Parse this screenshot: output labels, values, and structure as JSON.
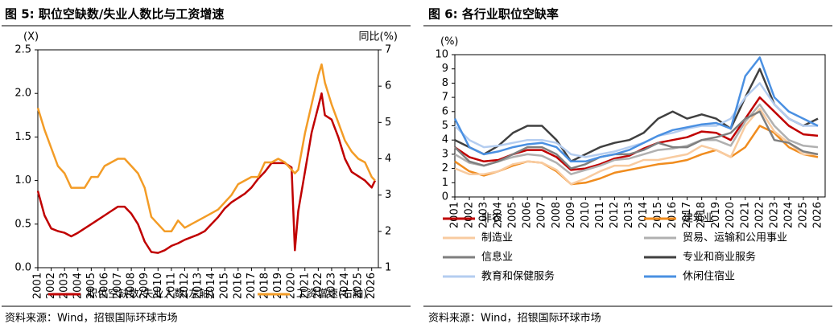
{
  "chart_data": [
    {
      "type": "line",
      "title": "图 5: 职位空缺数/失业人数比与工资增速",
      "y_label": "(X)",
      "y2_label": "同比(%)",
      "x": [
        2001,
        2001.5,
        2002,
        2002.5,
        2003,
        2003.5,
        2004,
        2004.5,
        2005,
        2005.5,
        2006,
        2006.5,
        2007,
        2007.5,
        2008,
        2008.5,
        2009,
        2009.5,
        2010,
        2010.5,
        2011,
        2011.5,
        2012,
        2012.5,
        2013,
        2013.5,
        2014,
        2014.5,
        2015,
        2015.5,
        2016,
        2016.5,
        2017,
        2017.5,
        2018,
        2018.5,
        2019,
        2019.5,
        2020,
        2020.25,
        2020.5,
        2021,
        2021.5,
        2022,
        2022.25,
        2022.5,
        2023,
        2023.5,
        2024,
        2024.5,
        2025,
        2025.5,
        2026,
        2026.25
      ],
      "xlim": [
        2001,
        2026.5
      ],
      "xticks": [
        2001,
        2002,
        2003,
        2004,
        2005,
        2006,
        2007,
        2008,
        2009,
        2010,
        2011,
        2012,
        2013,
        2014,
        2015,
        2016,
        2017,
        2018,
        2019,
        2020,
        2021,
        2022,
        2023,
        2024,
        2025,
        2026
      ],
      "ylim": [
        0,
        2.5
      ],
      "yticks": [
        {
          "value": 0,
          "label": "0.0"
        },
        0.5,
        {
          "value": 1,
          "label": "1.0"
        },
        1.5,
        {
          "value": 2,
          "label": "2.0"
        },
        2.5
      ],
      "y2lim": [
        1,
        7
      ],
      "y2ticks": [
        1,
        2,
        3,
        4,
        5,
        6,
        7
      ],
      "series": [
        {
          "name": "职位空缺数/失业人数(左轴)",
          "color": "#c00000",
          "values": [
            0.88,
            0.6,
            0.45,
            0.42,
            0.4,
            0.36,
            0.4,
            0.45,
            0.5,
            0.55,
            0.6,
            0.65,
            0.7,
            0.7,
            0.62,
            0.5,
            0.3,
            0.18,
            0.17,
            0.2,
            0.25,
            0.28,
            0.32,
            0.35,
            0.38,
            0.42,
            0.5,
            0.58,
            0.68,
            0.75,
            0.8,
            0.85,
            0.92,
            1.02,
            1.1,
            1.2,
            1.2,
            1.2,
            1.15,
            0.2,
            0.65,
            1.1,
            1.55,
            1.85,
            2.0,
            1.75,
            1.7,
            1.5,
            1.25,
            1.1,
            1.05,
            1.0,
            0.92,
            1.0
          ]
        },
        {
          "name": "工资增速(右轴)",
          "color": "#f39c26",
          "axis": "y2",
          "values": [
            5.4,
            4.8,
            4.3,
            3.8,
            3.6,
            3.2,
            3.2,
            3.2,
            3.5,
            3.5,
            3.8,
            3.9,
            4.0,
            4.0,
            3.8,
            3.6,
            3.2,
            2.4,
            2.2,
            2.0,
            2.0,
            2.3,
            2.1,
            2.2,
            2.3,
            2.4,
            2.5,
            2.6,
            2.8,
            3.0,
            3.3,
            3.4,
            3.5,
            3.5,
            3.9,
            3.9,
            4.0,
            3.9,
            3.7,
            3.6,
            3.7,
            4.7,
            5.5,
            6.3,
            6.6,
            6.1,
            5.5,
            5.0,
            4.5,
            4.2,
            4.0,
            3.9,
            3.5,
            3.4
          ]
        }
      ],
      "source": "资料来源：Wind，招银国际环球市场"
    },
    {
      "type": "line",
      "title": "图 6: 各行业职位空缺率",
      "y_label": "(%)",
      "x": [
        2001,
        2002,
        2003,
        2004,
        2005,
        2006,
        2007,
        2008,
        2009,
        2010,
        2011,
        2012,
        2013,
        2014,
        2015,
        2016,
        2017,
        2018,
        2019,
        2020,
        2021,
        2022,
        2023,
        2024,
        2025,
        2026
      ],
      "xlim": [
        2001,
        2026.5
      ],
      "xticks": [
        2001,
        2002,
        2003,
        2004,
        2005,
        2006,
        2007,
        2008,
        2009,
        2010,
        2011,
        2012,
        2013,
        2014,
        2015,
        2016,
        2017,
        2018,
        2019,
        2020,
        2021,
        2022,
        2023,
        2024,
        2025,
        2026
      ],
      "ylim": [
        0,
        10
      ],
      "yticks": [
        0,
        1,
        2,
        3,
        4,
        5,
        6,
        7,
        8,
        9,
        10
      ],
      "series": [
        {
          "name": "非农",
          "color": "#c00000",
          "values": [
            3.5,
            2.8,
            2.5,
            2.6,
            3.0,
            3.3,
            3.3,
            2.8,
            1.9,
            2.0,
            2.3,
            2.7,
            2.9,
            3.4,
            3.8,
            4.0,
            4.2,
            4.6,
            4.5,
            4.0,
            5.5,
            7.0,
            6.0,
            5.0,
            4.4,
            4.3
          ]
        },
        {
          "name": "建筑业",
          "color": "#f08c1e",
          "values": [
            2.5,
            1.8,
            1.5,
            1.8,
            2.2,
            2.5,
            2.4,
            1.8,
            0.9,
            1.0,
            1.3,
            1.7,
            1.9,
            2.1,
            2.3,
            2.4,
            2.6,
            3.0,
            3.3,
            2.8,
            3.5,
            5.0,
            4.5,
            3.5,
            3.0,
            2.8
          ]
        },
        {
          "name": "制造业",
          "color": "#f8cba0",
          "values": [
            2.0,
            1.6,
            1.6,
            1.8,
            2.3,
            2.5,
            2.4,
            1.9,
            0.9,
            1.3,
            1.8,
            2.2,
            2.2,
            2.6,
            2.6,
            2.8,
            3.0,
            3.6,
            3.3,
            2.8,
            5.0,
            6.2,
            4.6,
            3.8,
            3.0,
            3.0
          ]
        },
        {
          "name": "贸易、运输和公用事业",
          "color": "#b0b0b0",
          "values": [
            3.0,
            2.4,
            2.2,
            2.5,
            2.8,
            3.0,
            2.9,
            2.4,
            1.6,
            1.9,
            2.2,
            2.6,
            2.7,
            3.0,
            3.3,
            3.4,
            3.6,
            4.0,
            4.0,
            3.6,
            5.3,
            6.5,
            5.0,
            4.0,
            3.6,
            3.5
          ]
        },
        {
          "name": "信息业",
          "color": "#7f7f7f",
          "values": [
            3.5,
            2.5,
            2.2,
            2.5,
            3.0,
            3.5,
            3.5,
            3.0,
            2.0,
            2.3,
            2.8,
            3.0,
            3.0,
            3.3,
            3.8,
            3.5,
            3.5,
            4.0,
            4.2,
            4.5,
            5.5,
            6.0,
            4.0,
            3.8,
            3.2,
            3.0
          ]
        },
        {
          "name": "专业和商业服务",
          "color": "#404040",
          "values": [
            4.0,
            3.5,
            3.0,
            3.6,
            4.5,
            5.0,
            5.0,
            4.0,
            2.5,
            3.0,
            3.5,
            3.8,
            4.0,
            4.5,
            5.5,
            6.0,
            5.5,
            5.8,
            5.5,
            4.8,
            7.0,
            9.0,
            6.5,
            5.5,
            5.0,
            5.5
          ]
        },
        {
          "name": "教育和保健服务",
          "color": "#b4cdf0",
          "values": [
            5.0,
            4.0,
            3.5,
            3.6,
            3.8,
            4.0,
            4.0,
            3.8,
            3.0,
            2.8,
            3.0,
            3.2,
            3.5,
            3.8,
            4.3,
            4.5,
            4.8,
            5.0,
            5.0,
            5.5,
            7.0,
            8.0,
            6.5,
            5.5,
            5.0,
            5.0
          ]
        },
        {
          "name": "休闲住宿业",
          "color": "#4a90e2",
          "values": [
            5.5,
            3.5,
            3.0,
            3.2,
            3.5,
            3.7,
            3.8,
            3.5,
            2.5,
            2.5,
            2.8,
            3.0,
            3.3,
            3.8,
            4.3,
            4.7,
            4.9,
            5.1,
            5.2,
            4.8,
            8.5,
            9.8,
            7.0,
            6.0,
            5.5,
            5.0
          ]
        }
      ],
      "source": "资料来源：Wind，招银国际环球市场"
    }
  ]
}
